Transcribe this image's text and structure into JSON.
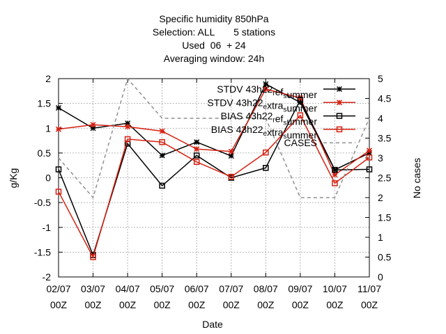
{
  "chart_data": {
    "type": "line",
    "title_lines": [
      "Specific humidity 850hPa",
      "Selection: ALL       5 stations",
      "Used  06  + 24",
      "Averaging window: 24h"
    ],
    "xlabel": "Date",
    "ylabel": "g/Kg",
    "y2label": "No cases",
    "categories": [
      [
        "02/07",
        "00Z"
      ],
      [
        "03/07",
        "00Z"
      ],
      [
        "04/07",
        "00Z"
      ],
      [
        "05/07",
        "00Z"
      ],
      [
        "06/07",
        "00Z"
      ],
      [
        "07/07",
        "00Z"
      ],
      [
        "08/07",
        "00Z"
      ],
      [
        "09/07",
        "00Z"
      ],
      [
        "10/07",
        "00Z"
      ],
      [
        "11/07",
        "00Z"
      ]
    ],
    "ylim": [
      -2,
      2
    ],
    "yticks": [
      "-2",
      "-1.5",
      "-1",
      "-0.5",
      "0",
      "0.5",
      "1",
      "1.5",
      "2"
    ],
    "y2lim": [
      0,
      5
    ],
    "y2ticks": [
      "0",
      "0.5",
      "1",
      "1.5",
      "2",
      "2.5",
      "3",
      "3.5",
      "4",
      "4.5",
      "5"
    ],
    "grid": true,
    "legend_position": "top-right",
    "series": [
      {
        "name_parts": [
          [
            "STDV 43h22",
            ""
          ],
          [
            "r",
            "sub"
          ],
          [
            "ef",
            ""
          ],
          [
            "s",
            "sub"
          ],
          [
            "ummer",
            ""
          ]
        ],
        "name": "STDV 43h22_ref_summer",
        "axis": "y",
        "color": "#000000",
        "marker": "star",
        "dash": "",
        "values": [
          1.41,
          1.0,
          1.1,
          0.45,
          0.72,
          0.44,
          1.89,
          1.52,
          0.16,
          0.5
        ]
      },
      {
        "name_parts": [
          [
            "STDV 43h22",
            ""
          ],
          [
            "e",
            "sub"
          ],
          [
            "xtra",
            ""
          ],
          [
            "s",
            "sub"
          ],
          [
            "ummer",
            ""
          ]
        ],
        "name": "STDV 43h22_extra_summer",
        "axis": "y",
        "color": "#d62010",
        "marker": "star",
        "dash": "",
        "values": [
          0.98,
          1.07,
          1.03,
          0.94,
          0.58,
          0.53,
          1.79,
          1.61,
          0.06,
          0.55
        ]
      },
      {
        "name_parts": [
          [
            "BIAS 43h22",
            ""
          ],
          [
            "r",
            "sub"
          ],
          [
            "ef",
            ""
          ],
          [
            "s",
            "sub"
          ],
          [
            "ummer",
            ""
          ]
        ],
        "name": "BIAS 43h22_ref_summer",
        "axis": "y",
        "color": "#000000",
        "marker": "square",
        "dash": "",
        "values": [
          0.17,
          -1.56,
          0.69,
          -0.16,
          0.45,
          0.0,
          0.2,
          1.57,
          0.16,
          0.17
        ]
      },
      {
        "name_parts": [
          [
            "BIAS 43h22",
            ""
          ],
          [
            "e",
            "sub"
          ],
          [
            "xtra",
            ""
          ],
          [
            "s",
            "sub"
          ],
          [
            "ummer",
            ""
          ]
        ],
        "name": "BIAS 43h22_extra_summer",
        "axis": "y",
        "color": "#d62010",
        "marker": "square",
        "dash": "",
        "values": [
          -0.28,
          -1.6,
          0.78,
          0.72,
          0.32,
          0.02,
          0.51,
          1.26,
          -0.11,
          0.41
        ]
      },
      {
        "name_parts": [
          [
            "CASES",
            ""
          ]
        ],
        "name": "CASES",
        "axis": "y2",
        "color": "#909090",
        "marker": "none",
        "dash": "5,4",
        "values": [
          3.0,
          2.0,
          5.0,
          4.0,
          4.0,
          4.0,
          4.0,
          2.0,
          2.0,
          4.0
        ]
      }
    ]
  }
}
